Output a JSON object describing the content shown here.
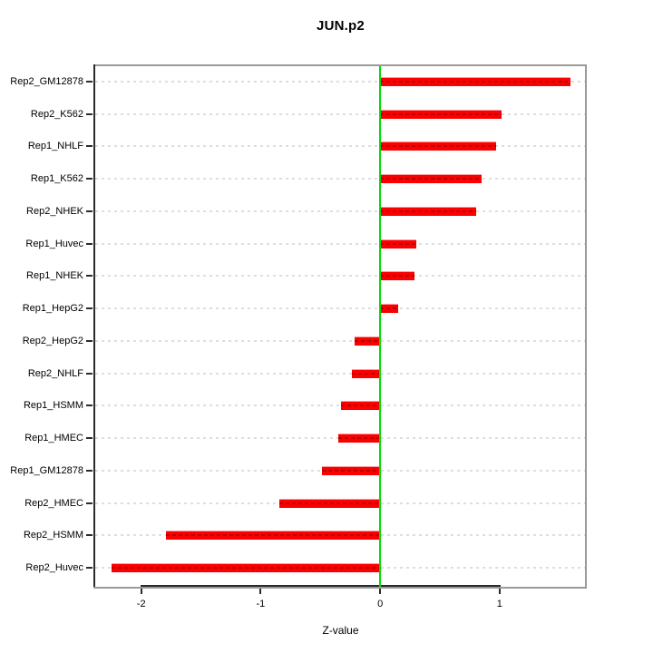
{
  "title": "JUN.p2",
  "chart_data": {
    "type": "bar",
    "orientation": "horizontal",
    "title": "JUN.p2",
    "xlabel": "Z-value",
    "ylabel": "",
    "categories": [
      "Rep2_GM12878",
      "Rep2_K562",
      "Rep1_NHLF",
      "Rep1_K562",
      "Rep2_NHEK",
      "Rep1_Huvec",
      "Rep1_NHEK",
      "Rep1_HepG2",
      "Rep2_HepG2",
      "Rep2_NHLF",
      "Rep1_HSMM",
      "Rep1_HMEC",
      "Rep1_GM12878",
      "Rep2_HMEC",
      "Rep2_HSMM",
      "Rep2_Huvec"
    ],
    "values": [
      1.59,
      1.02,
      0.97,
      0.85,
      0.8,
      0.3,
      0.29,
      0.15,
      -0.21,
      -0.24,
      -0.33,
      -0.35,
      -0.49,
      -0.84,
      -1.79,
      -2.25
    ],
    "xticks": [
      "-2",
      "-1",
      "0",
      "1"
    ],
    "xtick_values": [
      -2,
      -1,
      0,
      1
    ],
    "xlim": [
      -2.4,
      1.73
    ],
    "grid": "dashed horizontal line per category, light gray",
    "legend": "none",
    "bar_color": "#fb0000",
    "zero_line_color": "#00dd00",
    "border_color": "#9a9a9a",
    "axis_color": "#2b2b2b"
  }
}
